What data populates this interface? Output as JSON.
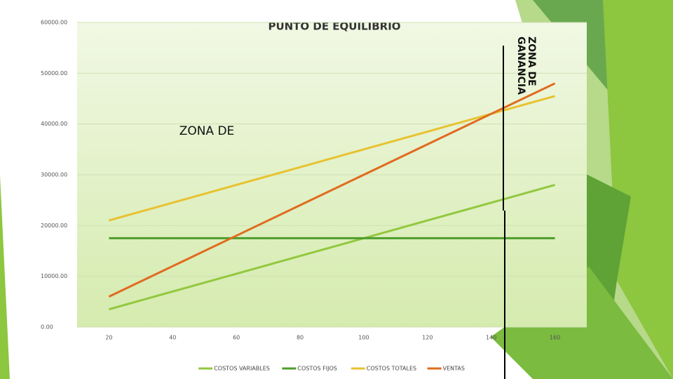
{
  "chart_data": {
    "type": "line",
    "title": "PUNTO DE EQUILIBRIO",
    "categories": [
      "20",
      "40",
      "60",
      "80",
      "100",
      "120",
      "140",
      "160"
    ],
    "series": [
      {
        "name": "COSTOS VARIABLES",
        "color": "#92c83e",
        "values": [
          3500,
          7000,
          10500,
          14000,
          17500,
          21000,
          24500,
          28000
        ]
      },
      {
        "name": "COSTOS FIJOS",
        "color": "#4e9d2d",
        "values": [
          17500,
          17500,
          17500,
          17500,
          17500,
          17500,
          17500,
          17500
        ]
      },
      {
        "name": "COSTOS TOTALES",
        "color": "#e8c230",
        "values": [
          21000,
          24500,
          28000,
          31500,
          35000,
          38500,
          42000,
          45500
        ]
      },
      {
        "name": "VENTAS",
        "color": "#e06b20",
        "values": [
          6000,
          12000,
          18000,
          24000,
          30000,
          36000,
          42000,
          48000
        ]
      }
    ],
    "ylim": [
      0,
      60000
    ],
    "yticks": [
      {
        "value": 0,
        "label": "0.00"
      },
      {
        "value": 10000,
        "label": "10000.00"
      },
      {
        "value": 20000,
        "label": "20000.00"
      },
      {
        "value": 30000,
        "label": "30000.00"
      },
      {
        "value": 40000,
        "label": "40000.00"
      },
      {
        "value": 50000,
        "label": "50000.00"
      },
      {
        "value": 60000,
        "label": "60000.00"
      }
    ],
    "grid": true,
    "legend": "bottom",
    "annotations": [
      "ZONA DE",
      "ZONA DE GANANCIA"
    ]
  }
}
